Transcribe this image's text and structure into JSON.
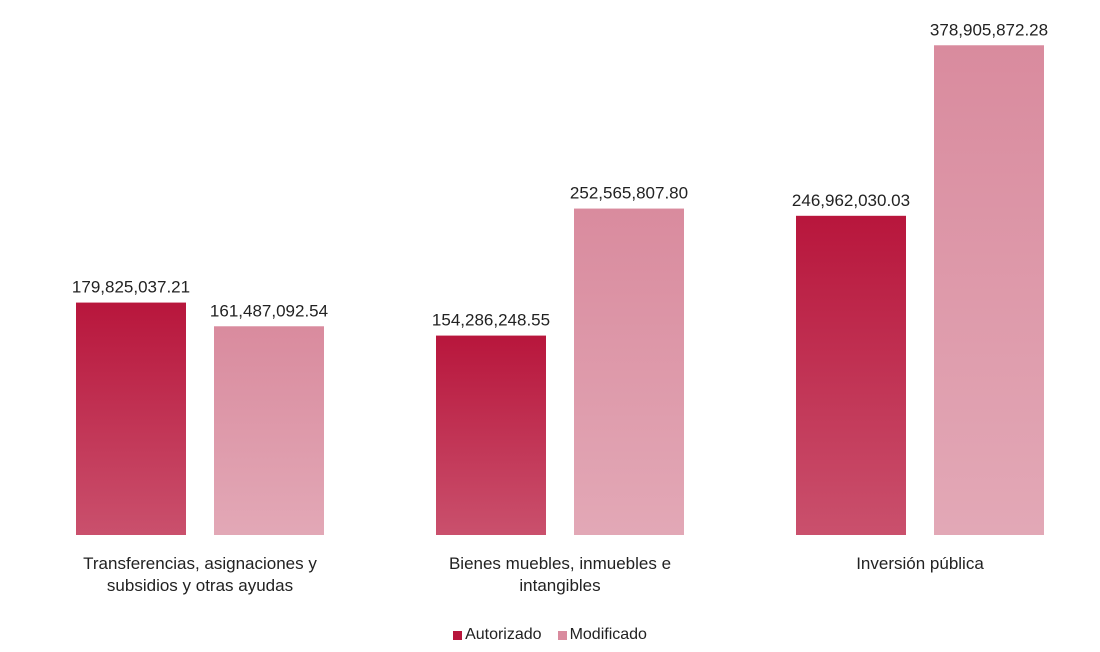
{
  "chart_data": {
    "type": "bar",
    "categories": [
      "Transferencias, asignaciones y subsidios y otras ayudas",
      "Bienes muebles, inmuebles e intangibles",
      "Inversión pública"
    ],
    "series": [
      {
        "name": "Autorizado",
        "color": "#b8163c",
        "values": [
          179825037.21,
          154286248.55,
          246962030.03
        ],
        "value_labels": [
          "179,825,037.21",
          "154,286,248.55",
          "246,962,030.03"
        ]
      },
      {
        "name": "Modificado",
        "color": "#d98b9e",
        "values": [
          161487092.54,
          252565807.8,
          378905872.28
        ],
        "value_labels": [
          "161,487,092.54",
          "252,565,807.80",
          "378,905,872.28"
        ]
      }
    ],
    "ylim": [
      0,
      400000000
    ],
    "legend": "bottom"
  }
}
